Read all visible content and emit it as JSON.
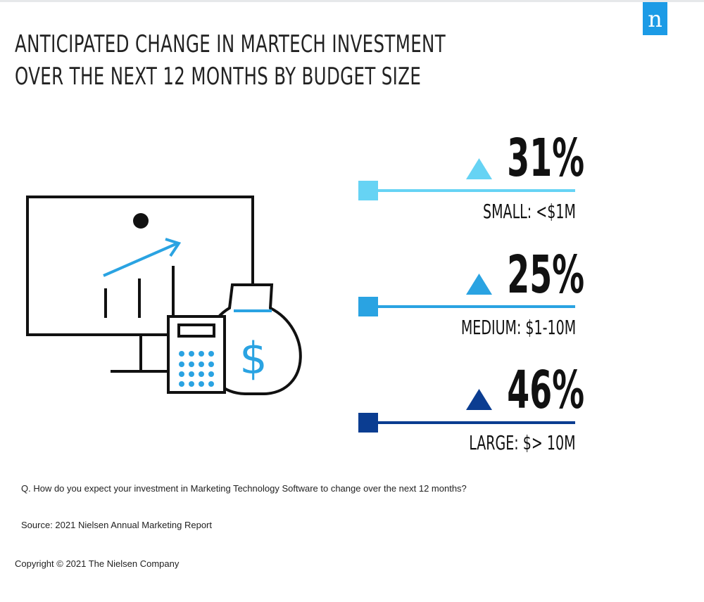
{
  "brand": {
    "logo_letter": "n",
    "accent": "#1c9be6"
  },
  "title": {
    "line1": "ANTICIPATED CHANGE IN MARTECH INVESTMENT",
    "line2": "OVER THE NEXT 12 MONTHS BY BUDGET SIZE"
  },
  "chart_data": {
    "type": "table",
    "title": "ANTICIPATED CHANGE IN MARTECH INVESTMENT OVER THE NEXT 12 MONTHS BY BUDGET SIZE",
    "unit": "%",
    "categories": [
      "SMALL: <$1M",
      "MEDIUM: $1-10M",
      "LARGE: $> 10M"
    ],
    "values": [
      31,
      25,
      46
    ],
    "direction": [
      "up",
      "up",
      "up"
    ],
    "series_colors": [
      "#66d3f4",
      "#2aa3e2",
      "#0b3d91"
    ],
    "items": [
      {
        "value_label": "31%",
        "label": "SMALL: <$1M",
        "color": "#66d3f4"
      },
      {
        "value_label": "25%",
        "label": "MEDIUM: $1-10M",
        "color": "#2aa3e2"
      },
      {
        "value_label": "46%",
        "label": "LARGE: $> 10M",
        "color": "#0b3d91"
      }
    ]
  },
  "illustration": {
    "dollar_sign": "$",
    "accent": "#2aa3e2"
  },
  "footer": {
    "question": "Q. How do you expect your investment in Marketing Technology Software to change over the next 12 months?",
    "source": "Source: 2021 Nielsen Annual Marketing Report",
    "copyright": "Copyright © 2021 The Nielsen Company"
  }
}
